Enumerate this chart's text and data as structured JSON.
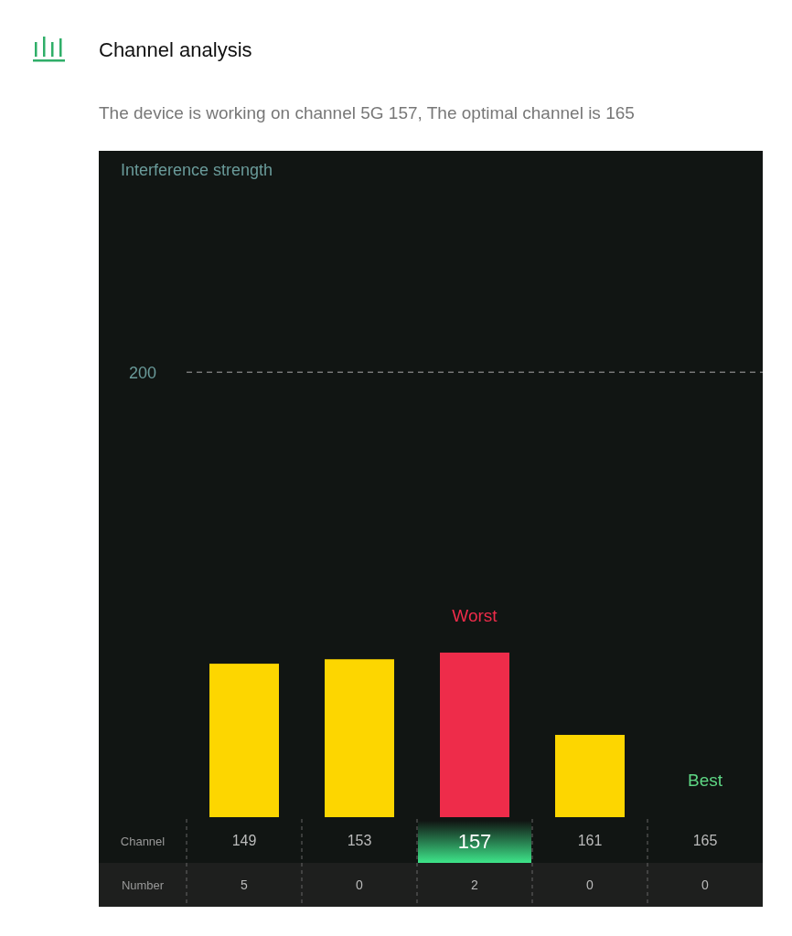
{
  "chart_data": {
    "type": "bar",
    "title": "Channel analysis",
    "subtitle": "The device is working on channel 5G 157, The optimal channel is 165",
    "xlabel": "Channel",
    "categories": [
      "149",
      "153",
      "157",
      "161",
      "165"
    ],
    "values": [
      69,
      71,
      74,
      37,
      0
    ],
    "colors": [
      "#fdd600",
      "#fdd600",
      "#ee2c4a",
      "#fdd600",
      "#fdd600"
    ],
    "ylim": [
      0,
      300
    ],
    "yticks": [
      200
    ],
    "grid": "y",
    "annotations": [
      {
        "text": "Worst",
        "x": "157",
        "y": 74
      },
      {
        "text": "Best",
        "x": "165",
        "y": 0
      },
      "Interference strength",
      "Number",
      "5",
      "0",
      "2",
      "0",
      "0"
    ]
  }
}
